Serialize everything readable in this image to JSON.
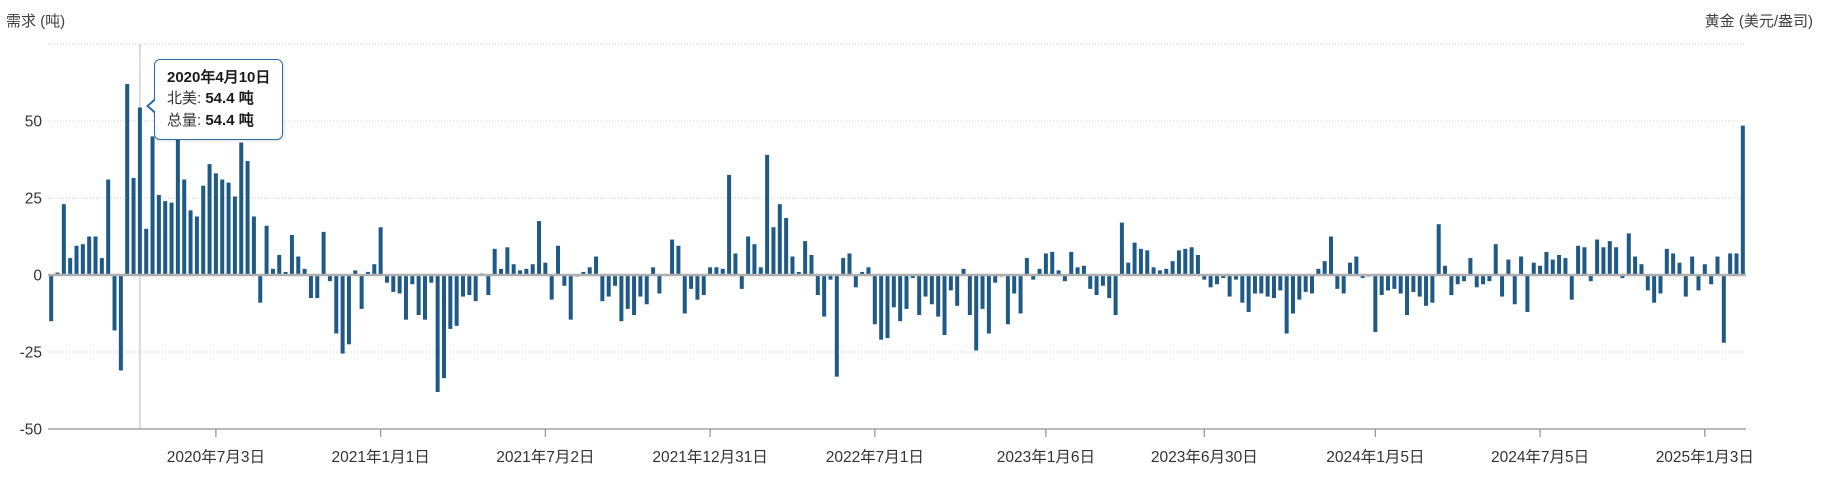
{
  "header": {
    "left_axis_title": "需求 (吨)",
    "right_axis_title": "黄金 (美元/盎司)"
  },
  "tooltip": {
    "date": "2020年4月10日",
    "rows": [
      {
        "label": "北美:",
        "value": "54.4 吨"
      },
      {
        "label": "总量:",
        "value": "54.4 吨"
      }
    ]
  },
  "chart_data": {
    "type": "bar",
    "title": "",
    "series_name": "北美",
    "unit": "吨",
    "x_start_date": "2020-01-03",
    "x_interval_days": 7,
    "hover_index": 14,
    "hover_date": "2020年4月10日",
    "hover_value": 54.4,
    "ylim": [
      -50,
      75
    ],
    "grid": "dotted-horizontal",
    "legend": "none",
    "y_ticks": [
      50,
      25,
      0,
      -25,
      -50
    ],
    "y_gridlines": [
      75,
      50,
      25,
      0,
      -25,
      -50
    ],
    "x_tick_labels": [
      "2020年7月3日",
      "2021年1月1日",
      "2021年7月2日",
      "2021年12月31日",
      "2022年7月1日",
      "2023年1月6日",
      "2023年6月30日",
      "2024年1月5日",
      "2024年7月5日",
      "2025年1月3日"
    ],
    "x_tick_weeks": [
      26,
      52,
      78,
      104,
      130,
      157,
      182,
      209,
      235,
      261
    ],
    "values": [
      -15,
      0.8,
      23,
      5.5,
      9.5,
      10,
      12.5,
      12.5,
      5.5,
      31,
      -18,
      -31,
      62,
      31.5,
      54.4,
      15,
      45,
      26,
      24,
      23.5,
      44,
      31,
      21,
      19,
      29,
      36,
      33,
      31,
      30,
      25.5,
      43,
      37,
      19,
      -9,
      16,
      2,
      6.5,
      1,
      13,
      6,
      2,
      -7.5,
      -7.5,
      14,
      -2,
      -19,
      -25.5,
      -22.5,
      1.5,
      -11,
      1,
      3.5,
      15.5,
      -2.5,
      -5.5,
      -6,
      -14.5,
      -3,
      -13,
      -14.5,
      -2.5,
      -38,
      -33.5,
      -17.5,
      -16.5,
      -7,
      -6.5,
      -8.5,
      0.5,
      -6.5,
      8.5,
      2,
      9,
      3.5,
      1.5,
      2,
      3.5,
      17.5,
      4,
      -8,
      9.5,
      -3.5,
      -14.5,
      -0.5,
      1,
      2.5,
      6,
      -8.5,
      -7,
      -3.5,
      -15,
      -11,
      -13,
      -7,
      -9.5,
      2.5,
      -6,
      0.3,
      11.5,
      9.5,
      -12.5,
      -4.5,
      -8,
      -6.5,
      2.5,
      2.5,
      2,
      32.5,
      7,
      -4.5,
      12.5,
      10,
      2.5,
      39,
      15.5,
      23,
      18.5,
      6,
      1,
      11,
      6.5,
      -6.5,
      -13.5,
      -1.5,
      -33,
      5.5,
      7,
      -4,
      1,
      2.5,
      -16,
      -21,
      -20.5,
      -10.5,
      -15,
      -11,
      -1,
      -13,
      -7,
      -9.5,
      -13.5,
      -19.5,
      -5,
      -10,
      2,
      -13,
      -24.5,
      -11,
      -19,
      -2.5,
      -0.5,
      -16,
      -6,
      -12.5,
      5.5,
      -1.5,
      2,
      7,
      7.5,
      1.5,
      -2,
      7.5,
      2.5,
      3,
      -4.5,
      -6.5,
      -3.5,
      -7.5,
      -13,
      17,
      4,
      10.5,
      8.5,
      8,
      2.5,
      1.5,
      2,
      4.5,
      8,
      8.5,
      9,
      6.5,
      -1.5,
      -4,
      -3,
      -1,
      -7,
      -1.5,
      -9,
      -12,
      -6,
      -6,
      -7,
      -7.5,
      -5,
      -19,
      -12.5,
      -8,
      -5.5,
      -6,
      2,
      4.5,
      12.5,
      -4.5,
      -6,
      4,
      6,
      -1,
      -0.5,
      -18.5,
      -6.5,
      -5,
      -4.5,
      -6,
      -13,
      -5.5,
      -7,
      -10,
      -9,
      16.5,
      3,
      -6.5,
      -3,
      -2,
      5.5,
      -4,
      -3,
      -2,
      10,
      -7,
      5,
      -9.5,
      6,
      -12,
      4,
      3,
      7.5,
      5,
      6.5,
      5.5,
      -8,
      9.5,
      9,
      -2,
      11.5,
      9,
      11,
      9,
      -1,
      13.5,
      6,
      3.5,
      -5,
      -9,
      -6,
      8.5,
      7,
      4,
      -7,
      6,
      -5,
      3.5,
      -3,
      6,
      -22,
      7,
      7,
      48.5
    ],
    "colors": {
      "bar": "#1f5a87",
      "grid": "#cccccc",
      "zero_line": "#b0b0b0",
      "axis_line": "#a3a3a3",
      "tick": "#999999",
      "crosshair": "#cccccc",
      "axis_label": "#333333",
      "title": "#404040",
      "tooltip_border": "#2f6da4",
      "background": "#ffffff"
    }
  }
}
